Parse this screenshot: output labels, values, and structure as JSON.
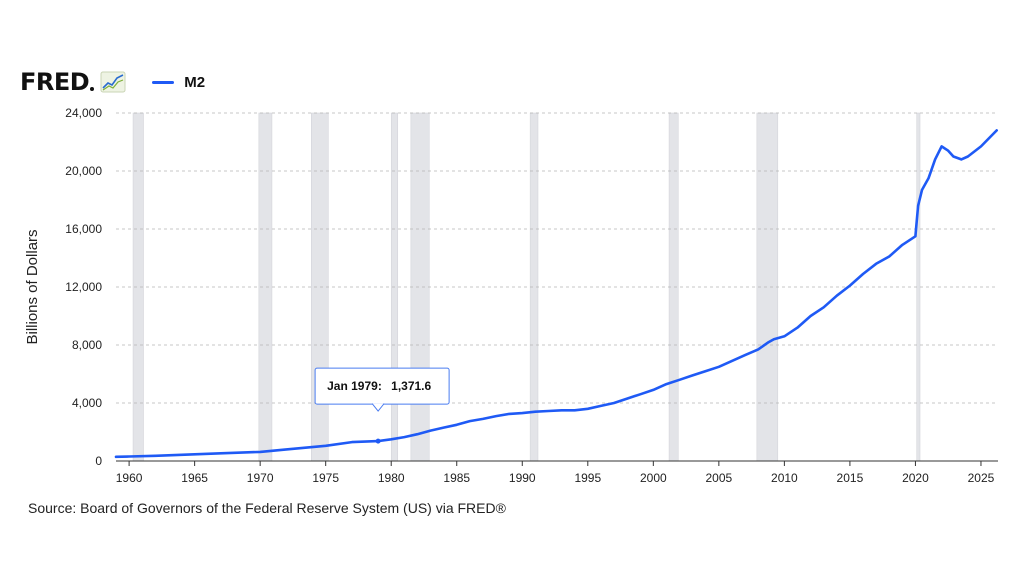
{
  "header": {
    "logo_text": "FRED",
    "logo_icon": "chart-line-icon"
  },
  "chart_data": {
    "type": "line",
    "ylabel": "Billions of Dollars",
    "xlim": [
      1959.0,
      2026.3
    ],
    "ylim": [
      0,
      24000
    ],
    "y_ticks": [
      0,
      4000,
      8000,
      12000,
      16000,
      20000,
      24000
    ],
    "y_tick_labels": [
      "0",
      "4,000",
      "8,000",
      "12,000",
      "16,000",
      "20,000",
      "24,000"
    ],
    "x_ticks": [
      1960,
      1965,
      1970,
      1975,
      1980,
      1985,
      1990,
      1995,
      2000,
      2005,
      2010,
      2015,
      2020,
      2025
    ],
    "x_tick_labels": [
      "1960",
      "1965",
      "1970",
      "1975",
      "1980",
      "1985",
      "1990",
      "1995",
      "2000",
      "2005",
      "2010",
      "2015",
      "2020",
      "2025"
    ],
    "grid": true,
    "legend_position": "top-left",
    "series": [
      {
        "name": "M2",
        "color": "#1f5af5",
        "x": [
          1959.0,
          1960,
          1962,
          1965,
          1967,
          1970,
          1972,
          1975,
          1977,
          1979.0,
          1980,
          1981,
          1982,
          1983,
          1984,
          1985,
          1986,
          1987,
          1988,
          1989,
          1990,
          1991,
          1992,
          1993,
          1994,
          1995,
          1996,
          1997,
          1998,
          1999,
          2000,
          2001,
          2002,
          2003,
          2004,
          2005,
          2006,
          2007,
          2008,
          2008.8,
          2009.2,
          2010,
          2011,
          2012,
          2013,
          2014,
          2015,
          2016,
          2017,
          2018,
          2019,
          2020.0,
          2020.2,
          2020.5,
          2021.0,
          2021.5,
          2022.0,
          2022.5,
          2022.9,
          2023.5,
          2024.0,
          2025.0,
          2026.2
        ],
        "values": [
          290,
          310,
          360,
          460,
          530,
          630,
          800,
          1050,
          1300,
          1371.6,
          1500,
          1650,
          1850,
          2100,
          2300,
          2500,
          2750,
          2900,
          3100,
          3250,
          3300,
          3400,
          3450,
          3500,
          3500,
          3600,
          3800,
          4000,
          4300,
          4600,
          4900,
          5300,
          5600,
          5900,
          6200,
          6500,
          6900,
          7300,
          7700,
          8200,
          8400,
          8600,
          9200,
          10000,
          10600,
          11400,
          12100,
          12900,
          13600,
          14100,
          14900,
          15500,
          17600,
          18700,
          19500,
          20800,
          21700,
          21400,
          21000,
          20800,
          21000,
          21700,
          22800
        ]
      }
    ],
    "recessions": [
      [
        1960.3,
        1961.1
      ],
      [
        1969.9,
        1970.9
      ],
      [
        1973.9,
        1975.2
      ],
      [
        1980.0,
        1980.5
      ],
      [
        1981.5,
        1982.9
      ],
      [
        1990.6,
        1991.2
      ],
      [
        2001.2,
        2001.9
      ],
      [
        2007.9,
        2009.5
      ],
      [
        2020.1,
        2020.35
      ]
    ],
    "tooltip": {
      "date_label": "Jan 1979:",
      "value_label": "1,371.6",
      "x": 1979.0,
      "y": 1371.6
    }
  },
  "source": {
    "text": "Source: Board of Governors of the Federal Reserve System (US) via FRED®"
  }
}
